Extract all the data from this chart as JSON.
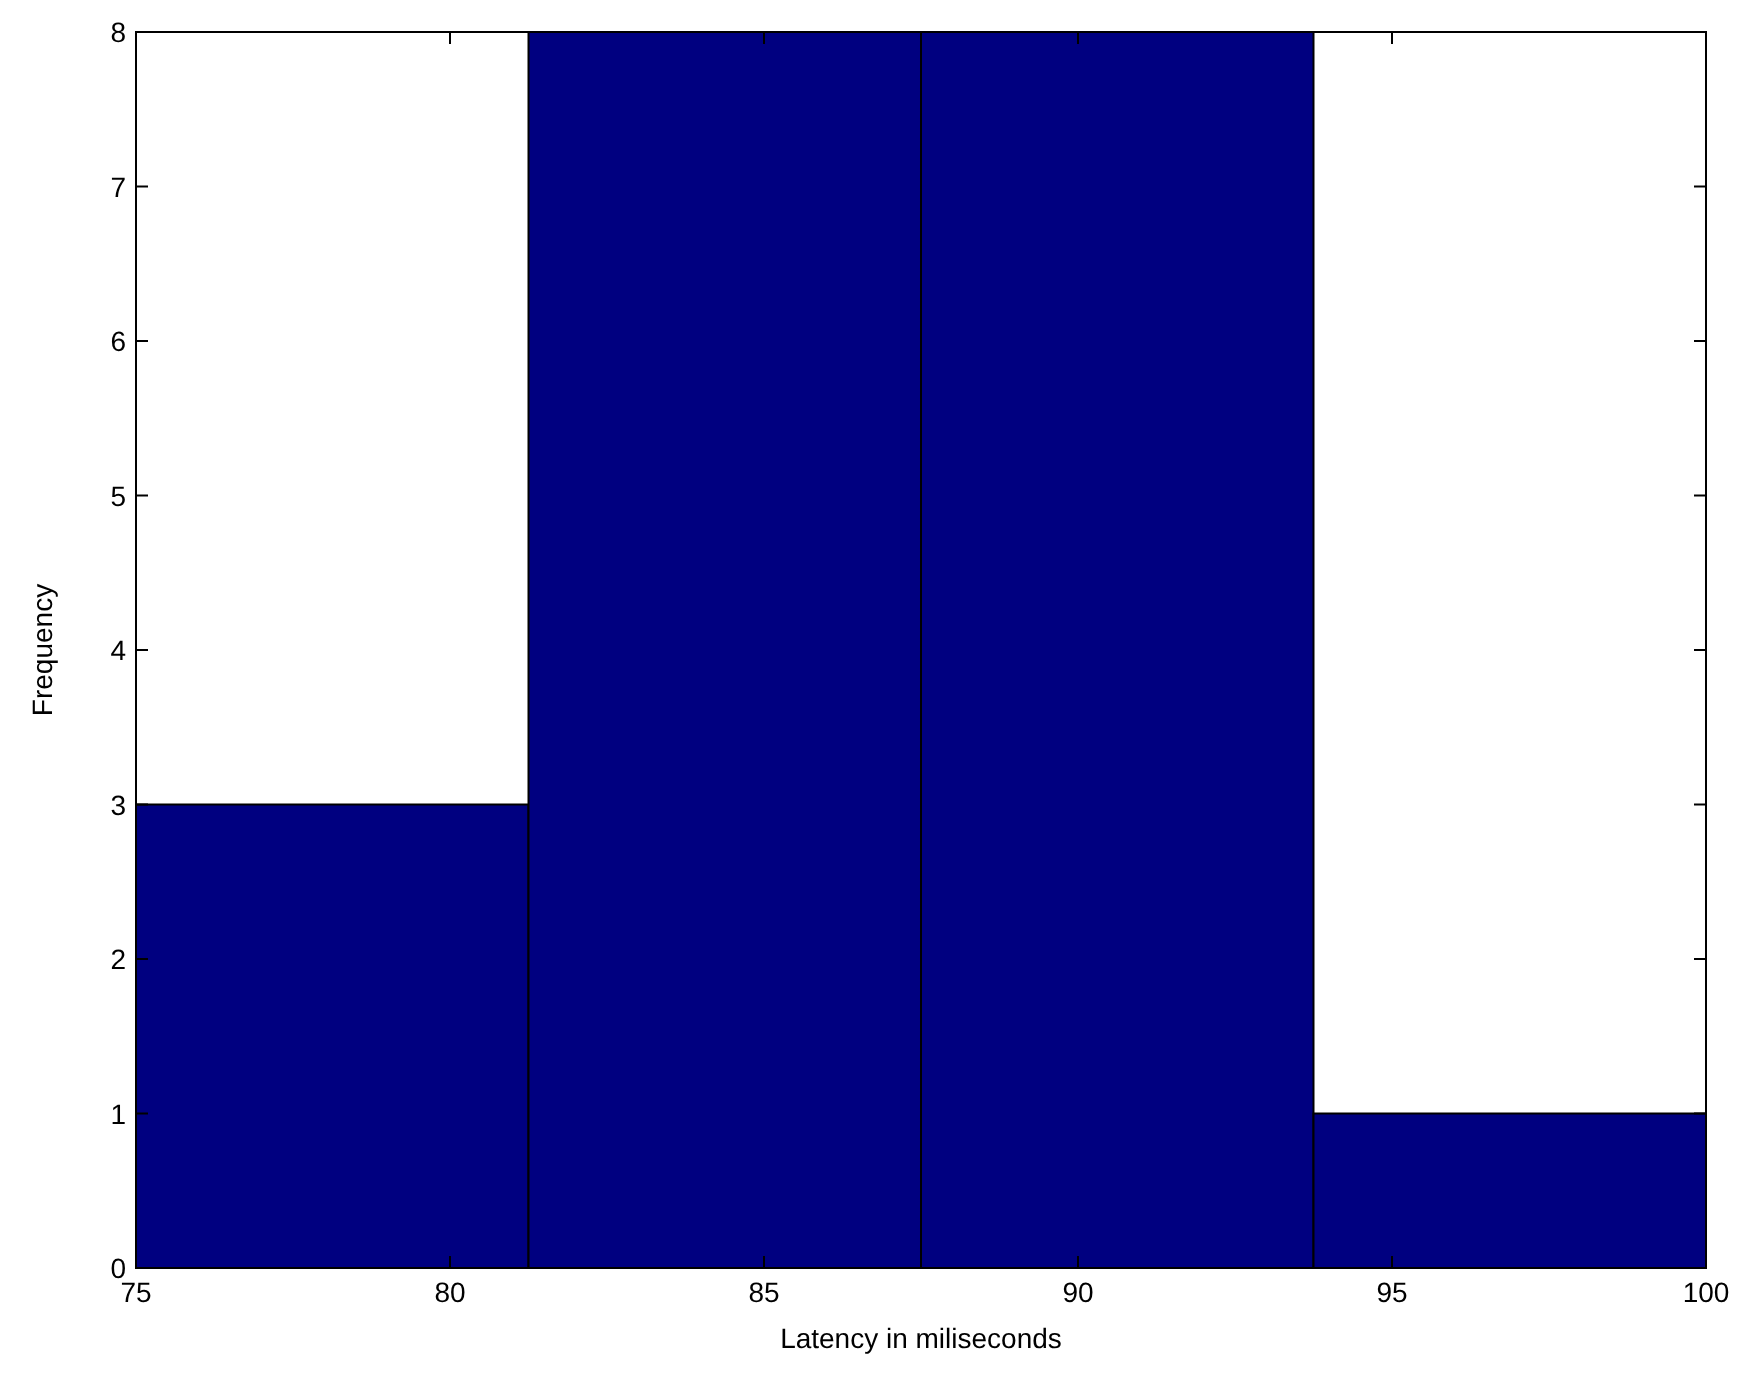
{
  "chart_data": {
    "type": "histogram",
    "xlabel": "Latency in miliseconds",
    "ylabel": "Frequency",
    "bins": [
      75,
      81.25,
      87.5,
      93.75,
      100
    ],
    "values": [
      3,
      8,
      8,
      1
    ],
    "color": "#000080",
    "xlim": [
      75,
      100
    ],
    "xticks": [
      75,
      80,
      85,
      90,
      95,
      100
    ],
    "ylim": [
      0,
      8
    ],
    "yticks": [
      0,
      1,
      2,
      3,
      4,
      5,
      6,
      7,
      8
    ],
    "grid": false
  }
}
